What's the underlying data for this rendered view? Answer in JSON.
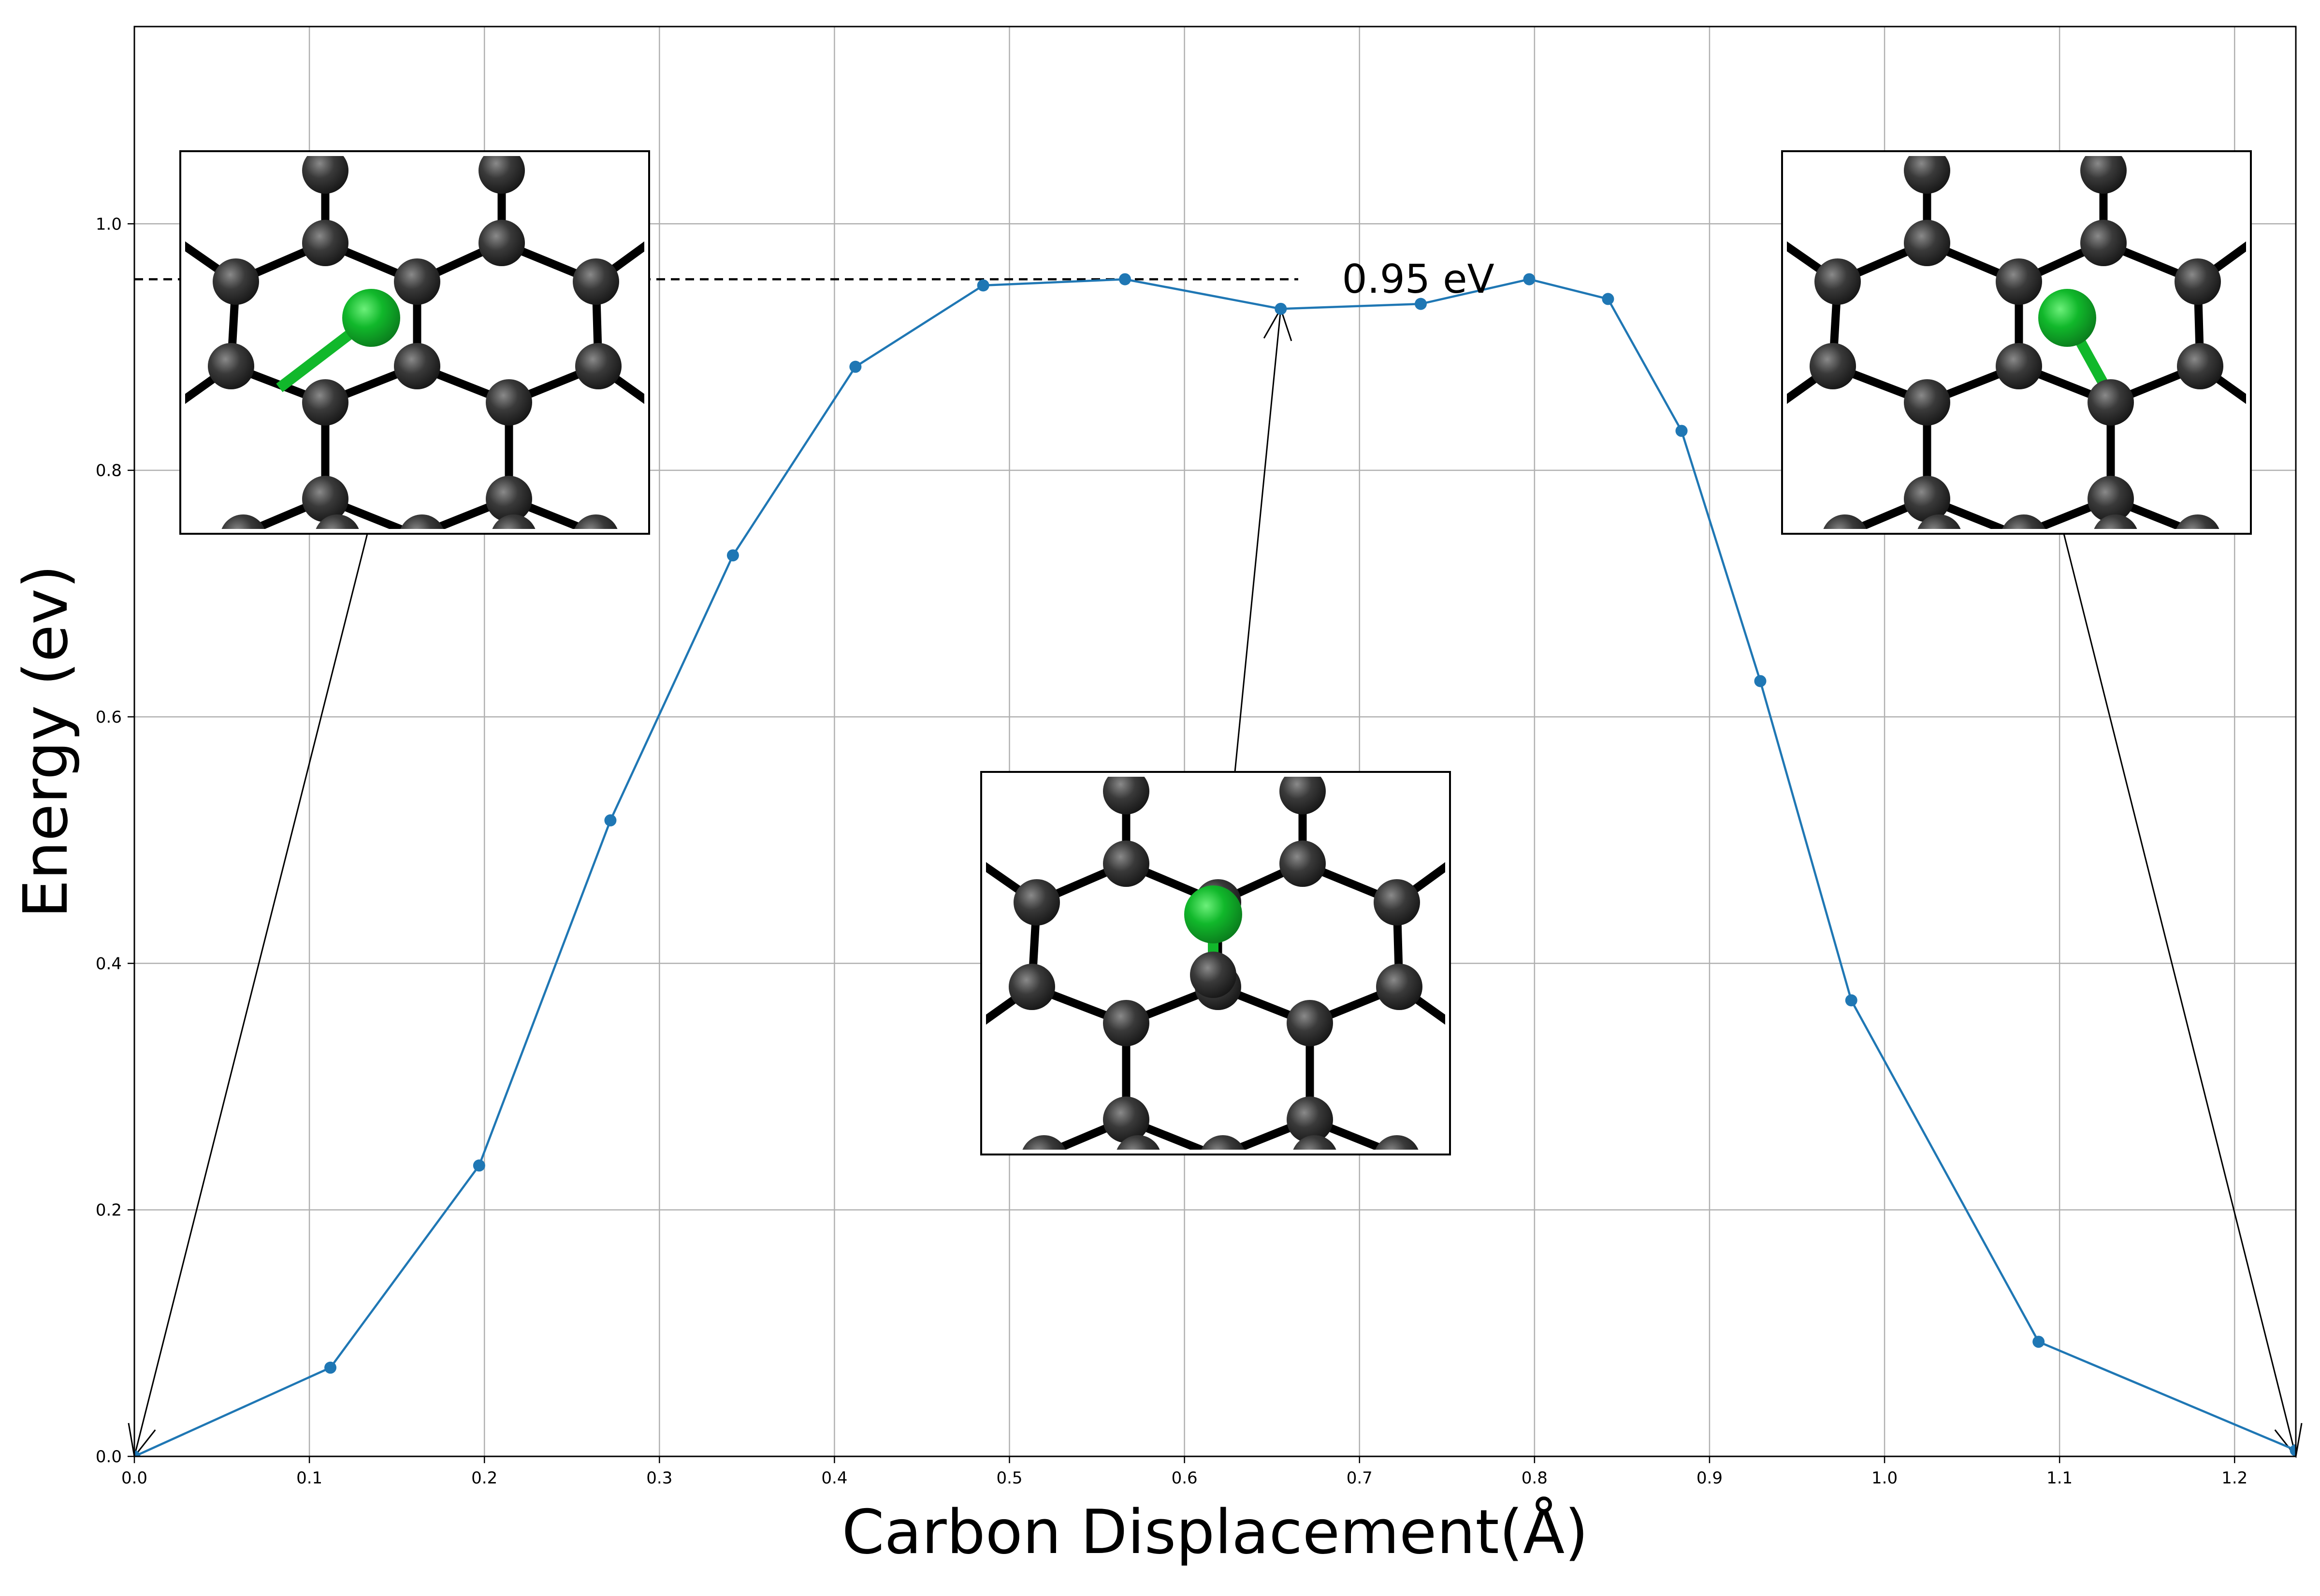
{
  "chart_data": {
    "type": "line",
    "title": "",
    "xlabel": "Carbon Displacement(Å)",
    "ylabel": "Energy (ev)",
    "xlim": [
      0.0,
      1.235
    ],
    "ylim": [
      0.0,
      1.16
    ],
    "x_ticks": [
      0.0,
      0.1,
      0.2,
      0.3,
      0.4,
      0.5,
      0.6,
      0.7,
      0.8,
      0.9,
      1.0,
      1.1,
      1.2
    ],
    "x_tick_labels": [
      "0.0",
      "0.1",
      "0.2",
      "0.3",
      "0.4",
      "0.5",
      "0.6",
      "0.7",
      "0.8",
      "0.9",
      "1.0",
      "1.1",
      "1.2"
    ],
    "y_ticks": [
      0.0,
      0.2,
      0.4,
      0.6,
      0.8,
      1.0
    ],
    "y_tick_labels": [
      "0.0",
      "0.2",
      "0.4",
      "0.6",
      "0.8",
      "1.0"
    ],
    "grid": true,
    "series": [
      {
        "color": "#1f77b4",
        "marker": "circle",
        "x": [
          0.0,
          0.112,
          0.197,
          0.272,
          0.342,
          0.412,
          0.485,
          0.566,
          0.655,
          0.735,
          0.797,
          0.842,
          0.884,
          0.929,
          0.981,
          1.088,
          1.235
        ],
        "y": [
          0.0,
          0.072,
          0.236,
          0.516,
          0.731,
          0.884,
          0.95,
          0.955,
          0.931,
          0.935,
          0.955,
          0.939,
          0.832,
          0.629,
          0.37,
          0.093,
          0.005
        ]
      }
    ],
    "reference_line": {
      "y": 0.955,
      "style": "dashed",
      "color": "#000000",
      "x_range": [
        0.0,
        0.665
      ]
    },
    "annotations": [
      {
        "text": "0.95 eV",
        "x": 0.69,
        "y": 0.955
      }
    ],
    "insets": [
      {
        "name": "initial-structure",
        "points_to": [
          0.0,
          0.0
        ]
      },
      {
        "name": "saddle-structure",
        "points_to": [
          0.655,
          0.931
        ]
      },
      {
        "name": "final-structure",
        "points_to": [
          1.235,
          0.0
        ]
      }
    ],
    "colors": {
      "carbon_atom": "#3a3a3a",
      "bond": "#000000",
      "adatom": "#11b82b"
    }
  }
}
